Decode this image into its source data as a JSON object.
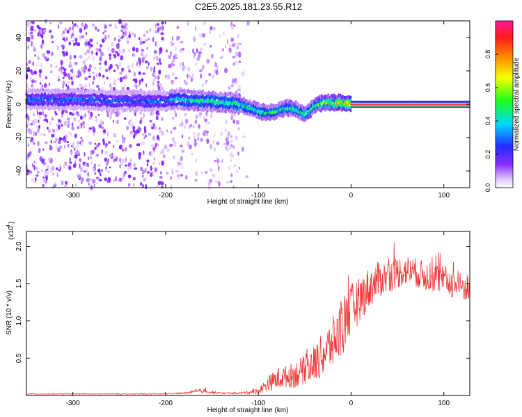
{
  "title": "C2E5.2025.181.23.55.R12",
  "colors": {
    "snr_line": "#ef3a3a",
    "band_core": "#ff2a2a",
    "scatter": "#7b1fff",
    "frame": "#000000"
  },
  "chart_data": [
    {
      "type": "heatmap",
      "title": "C2E5.2025.181.23.55.R12",
      "xlabel": "Height of straight line (km)",
      "ylabel": "Frequency (Hz)",
      "xlim": [
        -350,
        128
      ],
      "ylim": [
        -50,
        50
      ],
      "xticks": [
        -300,
        -200,
        -100,
        0,
        100
      ],
      "yticks": [
        -40,
        -20,
        0,
        20,
        40
      ],
      "colorbar": {
        "label": "Normalized spectral amplitude",
        "range": [
          0.0,
          1.0
        ],
        "ticks": [
          "0.0",
          "0.2",
          "0.4",
          "0.6",
          "0.8"
        ],
        "colormap": "rainbow (white/violet → blue → cyan → green → yellow → red → magenta)"
      },
      "ridge": {
        "x": [
          -350,
          -300,
          -250,
          -200,
          -190,
          -160,
          -130,
          -120,
          -110,
          -100,
          -90,
          -80,
          -70,
          -60,
          -50,
          -45,
          -40,
          -30,
          -20,
          -10,
          0,
          50,
          100,
          128
        ],
        "y": [
          3,
          3,
          2,
          2,
          3,
          2,
          1,
          0,
          -2,
          -4,
          -5,
          -4,
          -2,
          -3,
          -6,
          -4,
          -1,
          1,
          1,
          1,
          0,
          0,
          0,
          0
        ]
      },
      "ridge_peak_amplitude": {
        "x": [
          -350,
          -200,
          -190,
          -120,
          -80,
          -40,
          -20,
          0,
          128
        ],
        "amplitude": [
          0.35,
          0.35,
          0.5,
          0.55,
          0.55,
          0.6,
          0.8,
          0.95,
          0.95
        ]
      },
      "grid": false
    },
    {
      "type": "line",
      "xlabel": "Height of straight line (km)",
      "ylabel": "SNR (10 * v/v)",
      "scale_note": "(x10",
      "scale_exponent": "4",
      "xlim": [
        -350,
        128
      ],
      "ylim": [
        0,
        2.2
      ],
      "xticks": [
        -300,
        -200,
        -100,
        0,
        100
      ],
      "yticks": [
        0.5,
        1.0,
        1.5,
        2.0
      ],
      "ytick_labels": [
        "0.5",
        "1.0",
        "1.5",
        "2.0"
      ],
      "grid": false,
      "series": [
        {
          "x": [
            -350,
            -300,
            -250,
            -200,
            -180,
            -160,
            -150,
            -140,
            -120,
            -100,
            -90,
            -80,
            -70,
            -60,
            -50,
            -40,
            -30,
            -20,
            -10,
            -5,
            0,
            10,
            20,
            30,
            40,
            50,
            60,
            70,
            80,
            90,
            100,
            110,
            120,
            128
          ],
          "values": [
            0.02,
            0.02,
            0.02,
            0.02,
            0.03,
            0.06,
            0.04,
            0.03,
            0.03,
            0.06,
            0.15,
            0.22,
            0.25,
            0.28,
            0.35,
            0.42,
            0.55,
            0.7,
            0.9,
            1.05,
            1.15,
            1.3,
            1.45,
            1.55,
            1.6,
            1.65,
            1.68,
            1.65,
            1.6,
            1.58,
            1.55,
            1.5,
            1.45,
            1.45
          ],
          "noise": [
            0.005,
            0.005,
            0.005,
            0.005,
            0.01,
            0.03,
            0.02,
            0.01,
            0.01,
            0.04,
            0.1,
            0.15,
            0.15,
            0.18,
            0.2,
            0.25,
            0.3,
            0.35,
            0.4,
            0.4,
            0.35,
            0.3,
            0.28,
            0.25,
            0.22,
            0.22,
            0.2,
            0.2,
            0.2,
            0.2,
            0.2,
            0.2,
            0.2,
            0.2
          ]
        }
      ]
    }
  ]
}
